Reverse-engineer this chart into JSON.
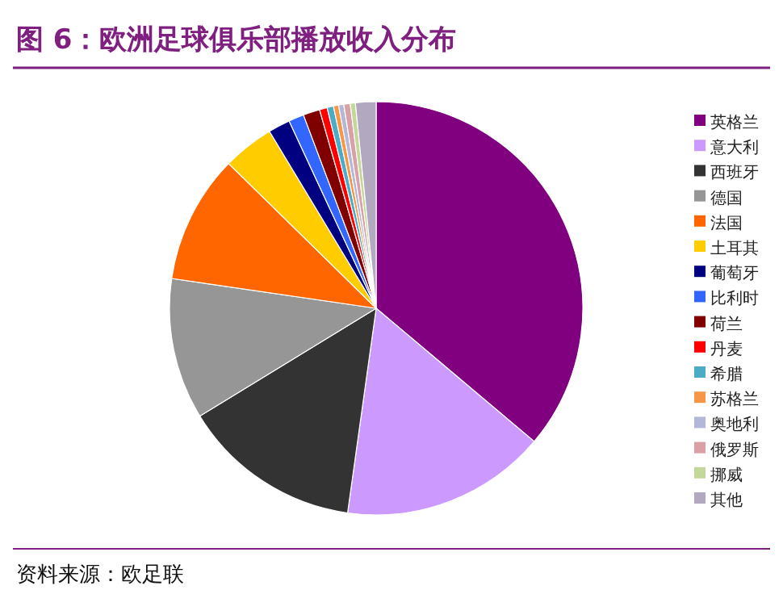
{
  "chart_data": {
    "type": "pie",
    "title": "图 6：欧洲足球俱乐部播放收入分布",
    "categories": [
      "英格兰",
      "意大利",
      "西班牙",
      "德国",
      "法国",
      "土耳其",
      "葡萄牙",
      "比利时",
      "荷兰",
      "丹麦",
      "希腊",
      "苏格兰",
      "奥地利",
      "俄罗斯",
      "挪威",
      "其他"
    ],
    "values": [
      36,
      16,
      14,
      11,
      10,
      4,
      1.7,
      1.2,
      1.3,
      0.6,
      0.5,
      0.4,
      0.4,
      0.5,
      0.4,
      1.6
    ],
    "colors": [
      "#800080",
      "#cc99ff",
      "#333333",
      "#969696",
      "#ff6600",
      "#ffcc00",
      "#000080",
      "#3366ff",
      "#800000",
      "#ff0000",
      "#4bacc6",
      "#f79646",
      "#b3b8d9",
      "#d9a0a6",
      "#c4d79b",
      "#b2a8c0"
    ],
    "legend": "right",
    "annotations": [
      "资料来源：欧足联"
    ]
  }
}
